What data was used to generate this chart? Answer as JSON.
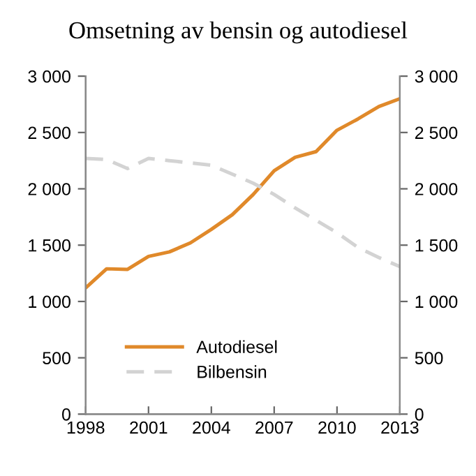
{
  "chart_data": {
    "type": "line",
    "title": "Omsetning av bensin og autodiesel",
    "x": [
      1998,
      1999,
      2000,
      2001,
      2002,
      2003,
      2004,
      2005,
      2006,
      2007,
      2008,
      2009,
      2010,
      2011,
      2012,
      2013
    ],
    "series": [
      {
        "name": "Autodiesel",
        "color": "#e0892a",
        "line_style": "solid",
        "values": [
          1120,
          1290,
          1285,
          1400,
          1440,
          1520,
          1640,
          1770,
          1950,
          2160,
          2280,
          2330,
          2520,
          2620,
          2730,
          2800
        ]
      },
      {
        "name": "Bilbensin",
        "color": "#d3d3d3",
        "line_style": "dashed",
        "values": [
          2270,
          2260,
          2180,
          2270,
          2250,
          2230,
          2210,
          2130,
          2050,
          1950,
          1830,
          1720,
          1610,
          1480,
          1390,
          1310
        ]
      }
    ],
    "xlim": [
      1998,
      2013
    ],
    "xticks": [
      1998,
      2001,
      2004,
      2007,
      2010,
      2013
    ],
    "ylim": [
      0,
      3000
    ],
    "yticks": [
      0,
      500,
      {
        "value": 1000,
        "label": "1 000"
      },
      {
        "value": 1500,
        "label": "1 500"
      },
      {
        "value": 2000,
        "label": "2 000"
      },
      {
        "value": 2500,
        "label": "2 500"
      },
      {
        "value": 3000,
        "label": "3 000"
      }
    ],
    "y2lim": [
      0,
      3000
    ],
    "y2ticks": [
      0,
      500,
      {
        "value": 1000,
        "label": "1 000"
      },
      {
        "value": 1500,
        "label": "1 500"
      },
      {
        "value": 2000,
        "label": "2 000"
      },
      {
        "value": 2500,
        "label": "2 500"
      },
      {
        "value": 3000,
        "label": "3 000"
      }
    ],
    "grid": false,
    "legend": "bottom left",
    "marker": "none"
  }
}
